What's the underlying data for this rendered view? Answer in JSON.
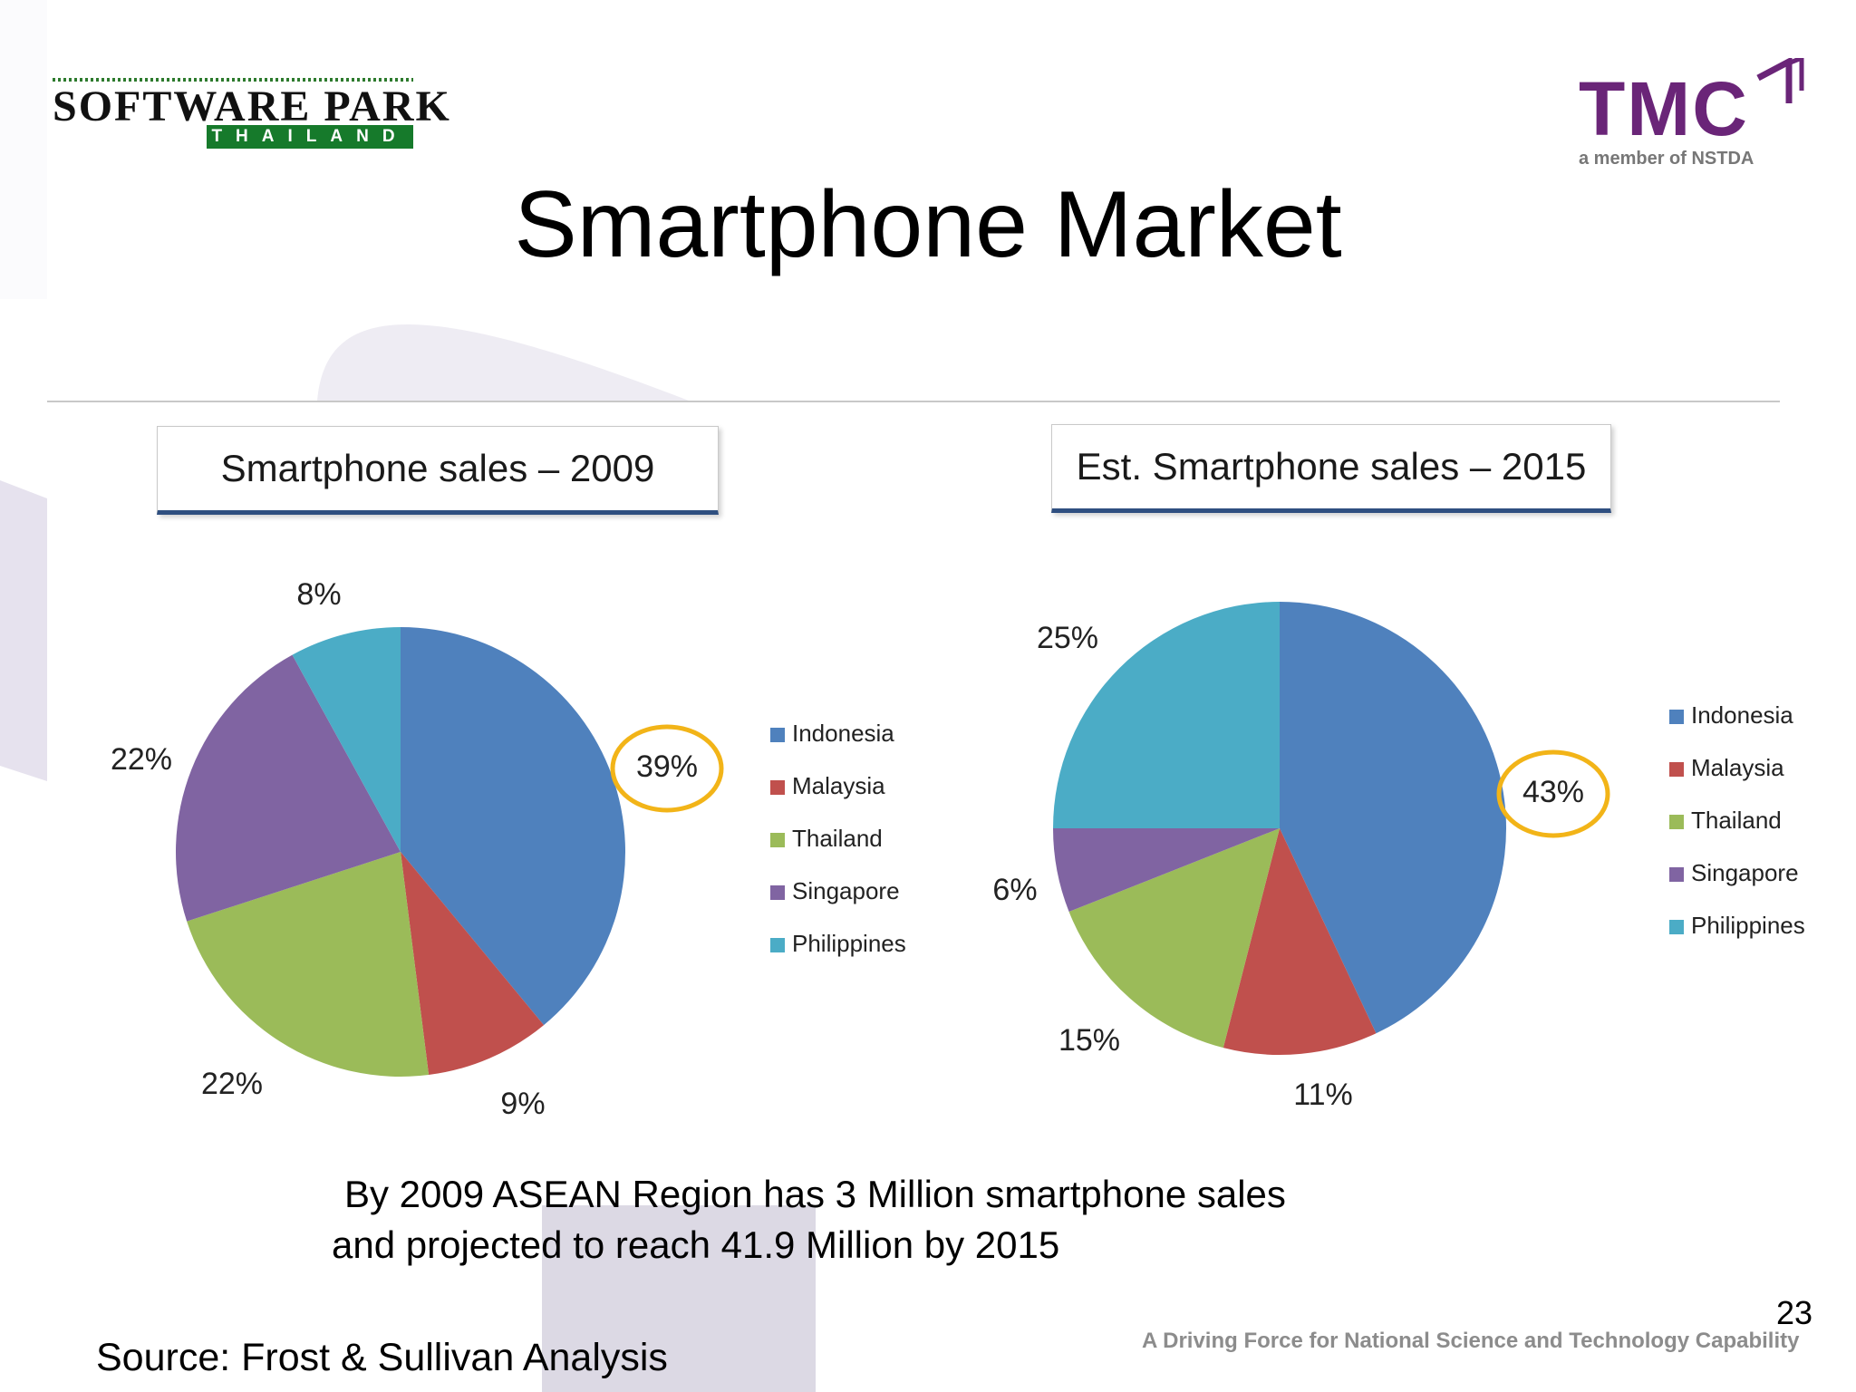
{
  "header": {
    "logo_left_text": "SOFTWARE PARK",
    "logo_left_sub": "THAILAND",
    "logo_right_text": "TMC",
    "logo_right_tagline": "a member of NSTDA"
  },
  "slide": {
    "title": "Smartphone Market",
    "note_line1": "By 2009 ASEAN Region has 3 Million smartphone sales",
    "note_line2": "and projected to reach 41.9 Million by 2015",
    "source": "Source:  Frost & Sullivan Analysis",
    "page_number": "23",
    "footer_tagline": "A Driving Force for National Science and Technology Capability"
  },
  "colors": {
    "Indonesia": "#4f81bd",
    "Malaysia": "#c0504d",
    "Thailand": "#9bbb59",
    "Singapore": "#8064a2",
    "Philippines": "#4bacc6",
    "highlight_ring": "#f2b418",
    "title_box_rule": "#2f4f80"
  },
  "chart_data": [
    {
      "type": "pie",
      "title": "Smartphone sales – 2009",
      "categories": [
        "Indonesia",
        "Malaysia",
        "Thailand",
        "Singapore",
        "Philippines"
      ],
      "values": [
        39,
        9,
        22,
        22,
        8
      ],
      "labels": [
        "39%",
        "9%",
        "22%",
        "22%",
        "8%"
      ],
      "legend": [
        "Indonesia",
        "Malaysia",
        "Thailand",
        "Singapore",
        "Philippines"
      ],
      "highlighted": "Indonesia"
    },
    {
      "type": "pie",
      "title": "Est. Smartphone sales – 2015",
      "categories": [
        "Indonesia",
        "Malaysia",
        "Thailand",
        "Singapore",
        "Philippines"
      ],
      "values": [
        43,
        11,
        15,
        6,
        25
      ],
      "labels": [
        "43%",
        "11%",
        "15%",
        "6%",
        "25%"
      ],
      "legend": [
        "Indonesia",
        "Malaysia",
        "Thailand",
        "Singapore",
        "Philippines"
      ],
      "highlighted": "Indonesia"
    }
  ]
}
